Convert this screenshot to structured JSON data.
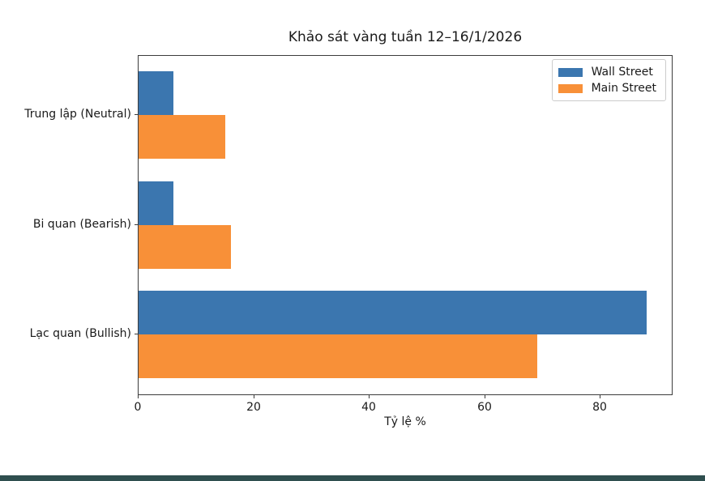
{
  "chart_data": {
    "type": "bar",
    "orientation": "horizontal",
    "title": "Khảo sát vàng tuần 12–16/1/2026",
    "xlabel": "Tỷ lệ %",
    "ylabel": "",
    "categories": [
      "Trung lập (Neutral)",
      "Bi quan (Bearish)",
      "Lạc quan (Bullish)"
    ],
    "series": [
      {
        "name": "Wall Street",
        "color": "#3b76af",
        "values": [
          6,
          6,
          88
        ]
      },
      {
        "name": "Main Street",
        "color": "#f89038",
        "values": [
          15,
          16,
          69
        ]
      }
    ],
    "x_ticks": [
      0,
      20,
      40,
      60,
      80
    ],
    "xlim": [
      0,
      92.6
    ],
    "grid": false,
    "legend_position": "upper right",
    "bar_group_order_top_to_bottom": [
      "Trung lập (Neutral)",
      "Bi quan (Bearish)",
      "Lạc quan (Bullish)"
    ]
  }
}
